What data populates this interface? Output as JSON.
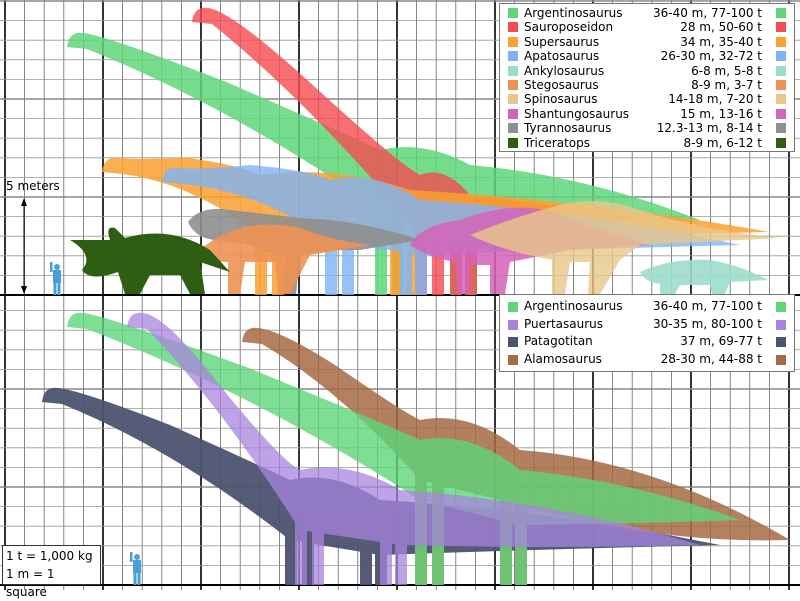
{
  "scale_label": "5 meters",
  "units": {
    "ton": "1 t = 1,000 kg",
    "meter": "1 m = 1 square"
  },
  "legend_top": [
    {
      "name": "Argentinosaurus",
      "stats": "36-40 m, 77-100 t",
      "color": "#5fd67a"
    },
    {
      "name": "Sauroposeidon",
      "stats": "28 m, 50-60 t",
      "color": "#f64b50"
    },
    {
      "name": "Supersaurus",
      "stats": "34 m, 35-40 t",
      "color": "#fba131"
    },
    {
      "name": "Apatosaurus",
      "stats": "26-30 m, 32-72 t",
      "color": "#7fb3f5"
    },
    {
      "name": "Ankylosaurus",
      "stats": "6-8 m, 5-8 t",
      "color": "#9ddccb"
    },
    {
      "name": "Stegosaurus",
      "stats": "8-9 m, 3-7 t",
      "color": "#ee9254"
    },
    {
      "name": "Spinosaurus",
      "stats": "14-18 m, 7-20 t",
      "color": "#e8c78a"
    },
    {
      "name": "Shantungosaurus",
      "stats": "15 m, 13-16 t",
      "color": "#d563b9"
    },
    {
      "name": "Tyrannosaurus",
      "stats": "12.3-13 m, 8-14 t",
      "color": "#8f8f8f"
    },
    {
      "name": "Triceratops",
      "stats": "8-9 m, 6-12 t",
      "color": "#2e5e12"
    }
  ],
  "legend_bottom": [
    {
      "name": "Argentinosaurus",
      "stats": "36-40 m, 77-100 t",
      "color": "#5fd67a"
    },
    {
      "name": "Puertasaurus",
      "stats": "30-35 m, 80-100 t",
      "color": "#a884dd"
    },
    {
      "name": "Patagotitan",
      "stats": "37 m, 69-77 t",
      "color": "#4c5370"
    },
    {
      "name": "Alamosaurus",
      "stats": "28-30 m, 44-88 t",
      "color": "#a66a44"
    }
  ],
  "human_color": "#4a9fd8"
}
